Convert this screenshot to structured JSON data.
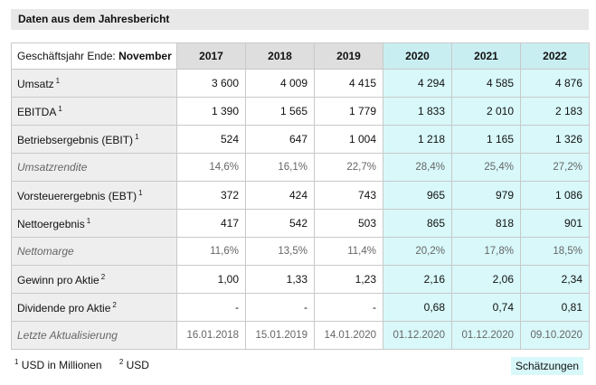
{
  "header": {
    "title": "Daten aus dem Jahresbericht"
  },
  "table": {
    "header_prefix": "Geschäftsjahr Ende: ",
    "header_month": "November",
    "columns": [
      "2017",
      "2018",
      "2019",
      "2020",
      "2021",
      "2022"
    ],
    "estimated": [
      false,
      false,
      false,
      true,
      true,
      true
    ],
    "rows": [
      {
        "label": "Umsatz",
        "note": "1",
        "italic": false,
        "values": [
          "3 600",
          "4 009",
          "4 415",
          "4 294",
          "4 585",
          "4 876"
        ]
      },
      {
        "label": "EBITDA",
        "note": "1",
        "italic": false,
        "values": [
          "1 390",
          "1 565",
          "1 779",
          "1 833",
          "2 010",
          "2 183"
        ]
      },
      {
        "label": "Betriebsergebnis (EBIT)",
        "note": "1",
        "italic": false,
        "values": [
          "524",
          "647",
          "1 004",
          "1 218",
          "1 165",
          "1 326"
        ]
      },
      {
        "label": "Umsatzrendite",
        "italic": true,
        "values": [
          "14,6%",
          "16,1%",
          "22,7%",
          "28,4%",
          "25,4%",
          "27,2%"
        ]
      },
      {
        "label": "Vorsteuerergebnis (EBT)",
        "note": "1",
        "italic": false,
        "values": [
          "372",
          "424",
          "743",
          "965",
          "979",
          "1 086"
        ]
      },
      {
        "label": "Nettoergebnis",
        "note": "1",
        "italic": false,
        "values": [
          "417",
          "542",
          "503",
          "865",
          "818",
          "901"
        ]
      },
      {
        "label": "Nettomarge",
        "italic": true,
        "values": [
          "11,6%",
          "13,5%",
          "11,4%",
          "20,2%",
          "17,8%",
          "18,5%"
        ]
      },
      {
        "label": "Gewinn pro Aktie",
        "note": "2",
        "italic": false,
        "values": [
          "1,00",
          "1,33",
          "1,23",
          "2,16",
          "2,06",
          "2,34"
        ]
      },
      {
        "label": "Dividende pro Aktie",
        "note": "2",
        "italic": false,
        "values": [
          "-",
          "-",
          "-",
          "0,68",
          "0,74",
          "0,81"
        ]
      },
      {
        "label": "Letzte Aktualisierung",
        "italic": true,
        "values": [
          "16.01.2018",
          "15.01.2019",
          "14.01.2020",
          "01.12.2020",
          "01.12.2020",
          "09.10.2020"
        ]
      }
    ]
  },
  "footnotes": [
    {
      "mark": "1",
      "text": "USD in Millionen"
    },
    {
      "mark": "2",
      "text": "USD"
    }
  ],
  "legend": "Schätzungen"
}
